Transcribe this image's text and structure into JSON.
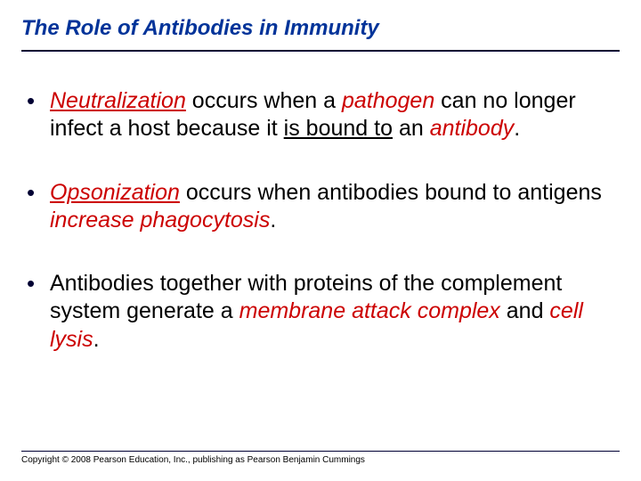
{
  "title": "The Role of Antibodies in Immunity",
  "bullets": {
    "b1": {
      "s1": "Neutralization",
      "s2": " occurs when a ",
      "s3": "pathogen",
      "s4": " can no longer infect a host because it ",
      "s5": "is bound to",
      "s6": " an ",
      "s7": "antibody",
      "s8": "."
    },
    "b2": {
      "s1": "Opsonization",
      "s2": " occurs when antibodies bound to antigens ",
      "s3": "increase phagocytosis",
      "s4": "."
    },
    "b3": {
      "s1": "Antibodies together with proteins of the complement system generate a ",
      "s2": "membrane attack complex",
      "s3": " and ",
      "s4": "cell lysis",
      "s5": "."
    }
  },
  "copyright": "Copyright © 2008 Pearson Education, Inc., publishing as Pearson Benjamin Cummings",
  "colors": {
    "title": "#003399",
    "rule": "#000033",
    "red": "#cc0000",
    "text": "#000000",
    "background": "#ffffff"
  },
  "typography": {
    "title_fontsize": 24,
    "body_fontsize": 25,
    "copyright_fontsize": 10,
    "title_style": "bold italic",
    "font_family": "Arial"
  }
}
